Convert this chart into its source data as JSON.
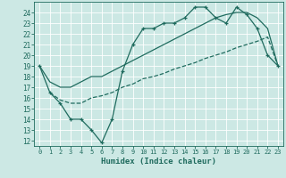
{
  "xlabel": "Humidex (Indice chaleur)",
  "xlim": [
    -0.5,
    23.5
  ],
  "ylim": [
    11.5,
    25.0
  ],
  "yticks": [
    12,
    13,
    14,
    15,
    16,
    17,
    18,
    19,
    20,
    21,
    22,
    23,
    24
  ],
  "xticks": [
    0,
    1,
    2,
    3,
    4,
    5,
    6,
    7,
    8,
    9,
    10,
    11,
    12,
    13,
    14,
    15,
    16,
    17,
    18,
    19,
    20,
    21,
    22,
    23
  ],
  "bg_color": "#cce8e4",
  "line_color": "#1f6b5e",
  "grid_color": "#b0d8d2",
  "line1_x": [
    0,
    1,
    2,
    3,
    4,
    5,
    6,
    7,
    8,
    9,
    10,
    11,
    12,
    13,
    14,
    15,
    16,
    17,
    18,
    19,
    20,
    21,
    22,
    23
  ],
  "line1_y": [
    19.0,
    16.5,
    15.5,
    14.0,
    14.0,
    13.0,
    11.8,
    14.0,
    18.5,
    21.0,
    22.5,
    22.5,
    23.0,
    23.0,
    23.5,
    24.5,
    24.5,
    23.5,
    23.0,
    24.5,
    23.8,
    22.5,
    20.0,
    19.0
  ],
  "line2_x": [
    0,
    1,
    2,
    3,
    4,
    5,
    6,
    7,
    8,
    9,
    10,
    11,
    12,
    13,
    14,
    15,
    16,
    17,
    18,
    19,
    20,
    21,
    22,
    23
  ],
  "line2_y": [
    19.0,
    17.5,
    17.0,
    17.0,
    17.5,
    18.0,
    18.0,
    18.5,
    19.0,
    19.5,
    20.0,
    20.5,
    21.0,
    21.5,
    22.0,
    22.5,
    23.0,
    23.5,
    23.8,
    24.0,
    24.0,
    23.5,
    22.5,
    19.0
  ],
  "line3_x": [
    1,
    2,
    3,
    4,
    5,
    6,
    7,
    8,
    9,
    10,
    11,
    12,
    13,
    14,
    15,
    16,
    17,
    18,
    19,
    20,
    21,
    22,
    23
  ],
  "line3_y": [
    16.5,
    15.8,
    15.5,
    15.5,
    16.0,
    16.2,
    16.5,
    17.0,
    17.3,
    17.8,
    18.0,
    18.3,
    18.7,
    19.0,
    19.3,
    19.7,
    20.0,
    20.3,
    20.7,
    21.0,
    21.3,
    21.7,
    19.0
  ]
}
